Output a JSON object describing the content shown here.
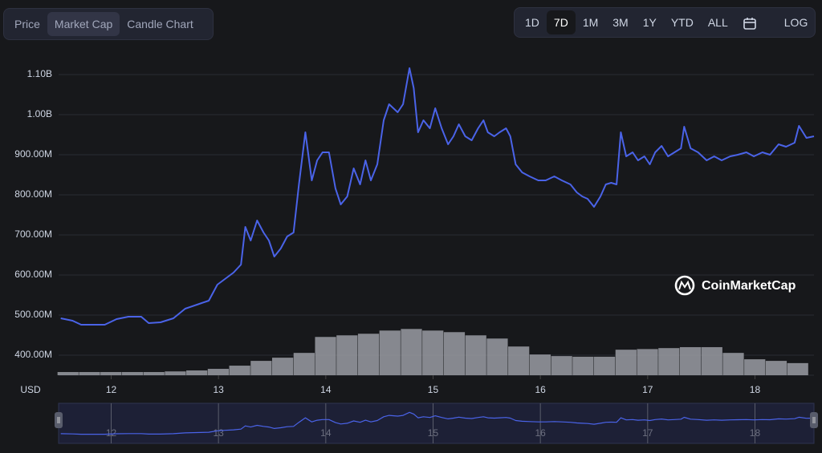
{
  "toolbar": {
    "tabs": [
      "Price",
      "Market Cap",
      "Candle Chart"
    ],
    "active_tab": 1,
    "ranges": [
      "1D",
      "7D",
      "1M",
      "3M",
      "1Y",
      "YTD",
      "ALL"
    ],
    "active_range": 1,
    "log_button": "LOG"
  },
  "watermark": "CoinMarketCap",
  "chart_data": {
    "type": "line",
    "currency": "USD",
    "x": [
      11.53,
      11.64,
      11.72,
      11.83,
      11.94,
      12.05,
      12.16,
      12.28,
      12.35,
      12.46,
      12.58,
      12.69,
      12.8,
      12.91,
      12.99,
      13.06,
      13.14,
      13.21,
      13.25,
      13.3,
      13.36,
      13.42,
      13.47,
      13.52,
      13.58,
      13.64,
      13.7,
      13.75,
      13.81,
      13.87,
      13.92,
      13.97,
      14.03,
      14.09,
      14.14,
      14.2,
      14.26,
      14.32,
      14.37,
      14.42,
      14.48,
      14.54,
      14.59,
      14.67,
      14.72,
      14.78,
      14.82,
      14.86,
      14.91,
      14.97,
      15.02,
      15.08,
      15.14,
      15.19,
      15.24,
      15.3,
      15.36,
      15.42,
      15.47,
      15.51,
      15.57,
      15.62,
      15.68,
      15.72,
      15.77,
      15.83,
      15.9,
      15.98,
      16.05,
      16.13,
      16.2,
      16.28,
      16.34,
      16.39,
      16.44,
      16.5,
      16.56,
      16.61,
      16.66,
      16.71,
      16.75,
      16.8,
      16.86,
      16.91,
      16.97,
      17.02,
      17.07,
      17.13,
      17.19,
      17.25,
      17.31,
      17.34,
      17.4,
      17.47,
      17.55,
      17.62,
      17.69,
      17.77,
      17.84,
      17.92,
      17.99,
      18.07,
      18.14,
      18.22,
      18.29,
      18.37,
      18.41,
      18.48,
      18.55
    ],
    "series": [
      {
        "name": "Market Cap",
        "color": "#4a63e8",
        "values": [
          492000000,
          486000000,
          476000000,
          476000000,
          476000000,
          490000000,
          496000000,
          496000000,
          480000000,
          482000000,
          492000000,
          516000000,
          526000000,
          536000000,
          576000000,
          590000000,
          606000000,
          626000000,
          720000000,
          686000000,
          736000000,
          706000000,
          686000000,
          646000000,
          666000000,
          696000000,
          706000000,
          826000000,
          956000000,
          836000000,
          886000000,
          906000000,
          906000000,
          816000000,
          776000000,
          796000000,
          866000000,
          826000000,
          886000000,
          836000000,
          876000000,
          986000000,
          1026000000,
          1006000000,
          1026000000,
          1116000000,
          1066000000,
          956000000,
          986000000,
          966000000,
          1016000000,
          966000000,
          926000000,
          946000000,
          976000000,
          946000000,
          936000000,
          966000000,
          986000000,
          956000000,
          946000000,
          956000000,
          966000000,
          946000000,
          876000000,
          856000000,
          846000000,
          836000000,
          836000000,
          846000000,
          836000000,
          826000000,
          806000000,
          796000000,
          790000000,
          770000000,
          796000000,
          826000000,
          830000000,
          826000000,
          956000000,
          896000000,
          906000000,
          886000000,
          896000000,
          876000000,
          906000000,
          922000000,
          896000000,
          906000000,
          916000000,
          970000000,
          916000000,
          906000000,
          886000000,
          896000000,
          886000000,
          896000000,
          900000000,
          906000000,
          896000000,
          906000000,
          900000000,
          926000000,
          920000000,
          930000000,
          972000000,
          942000000,
          946000000
        ]
      }
    ],
    "volume": {
      "color": "#9a9ca3",
      "axis": "y2",
      "x": [
        11.6,
        11.8,
        12.0,
        12.2,
        12.4,
        12.6,
        12.8,
        13.0,
        13.2,
        13.4,
        13.6,
        13.8,
        14.0,
        14.2,
        14.4,
        14.6,
        14.8,
        15.0,
        15.2,
        15.4,
        15.6,
        15.8,
        16.0,
        16.2,
        16.4,
        16.6,
        16.8,
        17.0,
        17.2,
        17.4,
        17.6,
        17.8,
        18.0,
        18.2,
        18.4
      ],
      "values": [
        1,
        1,
        1,
        1,
        1,
        1.2,
        1.5,
        2,
        3,
        4.5,
        5.5,
        7,
        12,
        12.5,
        13,
        14,
        14.5,
        14,
        13.5,
        12.5,
        11.5,
        9,
        6.5,
        6,
        5.8,
        5.8,
        8,
        8.2,
        8.5,
        8.8,
        8.8,
        7,
        5,
        4.5,
        3.8
      ]
    },
    "xlim": [
      11.51,
      18.55
    ],
    "xticks": [
      12,
      13,
      14,
      15,
      16,
      17,
      18
    ],
    "ylim": [
      350000000,
      1146000000
    ],
    "y2lim": [
      0,
      100
    ],
    "yticks": [
      {
        "value": 400000000,
        "label": "400.00M"
      },
      {
        "value": 500000000,
        "label": "500.00M"
      },
      {
        "value": 600000000,
        "label": "600.00M"
      },
      {
        "value": 700000000,
        "label": "700.00M"
      },
      {
        "value": 800000000,
        "label": "800.00M"
      },
      {
        "value": 900000000,
        "label": "900.00M"
      },
      {
        "value": 1000000000,
        "label": "1.00B"
      },
      {
        "value": 1100000000,
        "label": "1.10B"
      }
    ],
    "grid": true
  }
}
